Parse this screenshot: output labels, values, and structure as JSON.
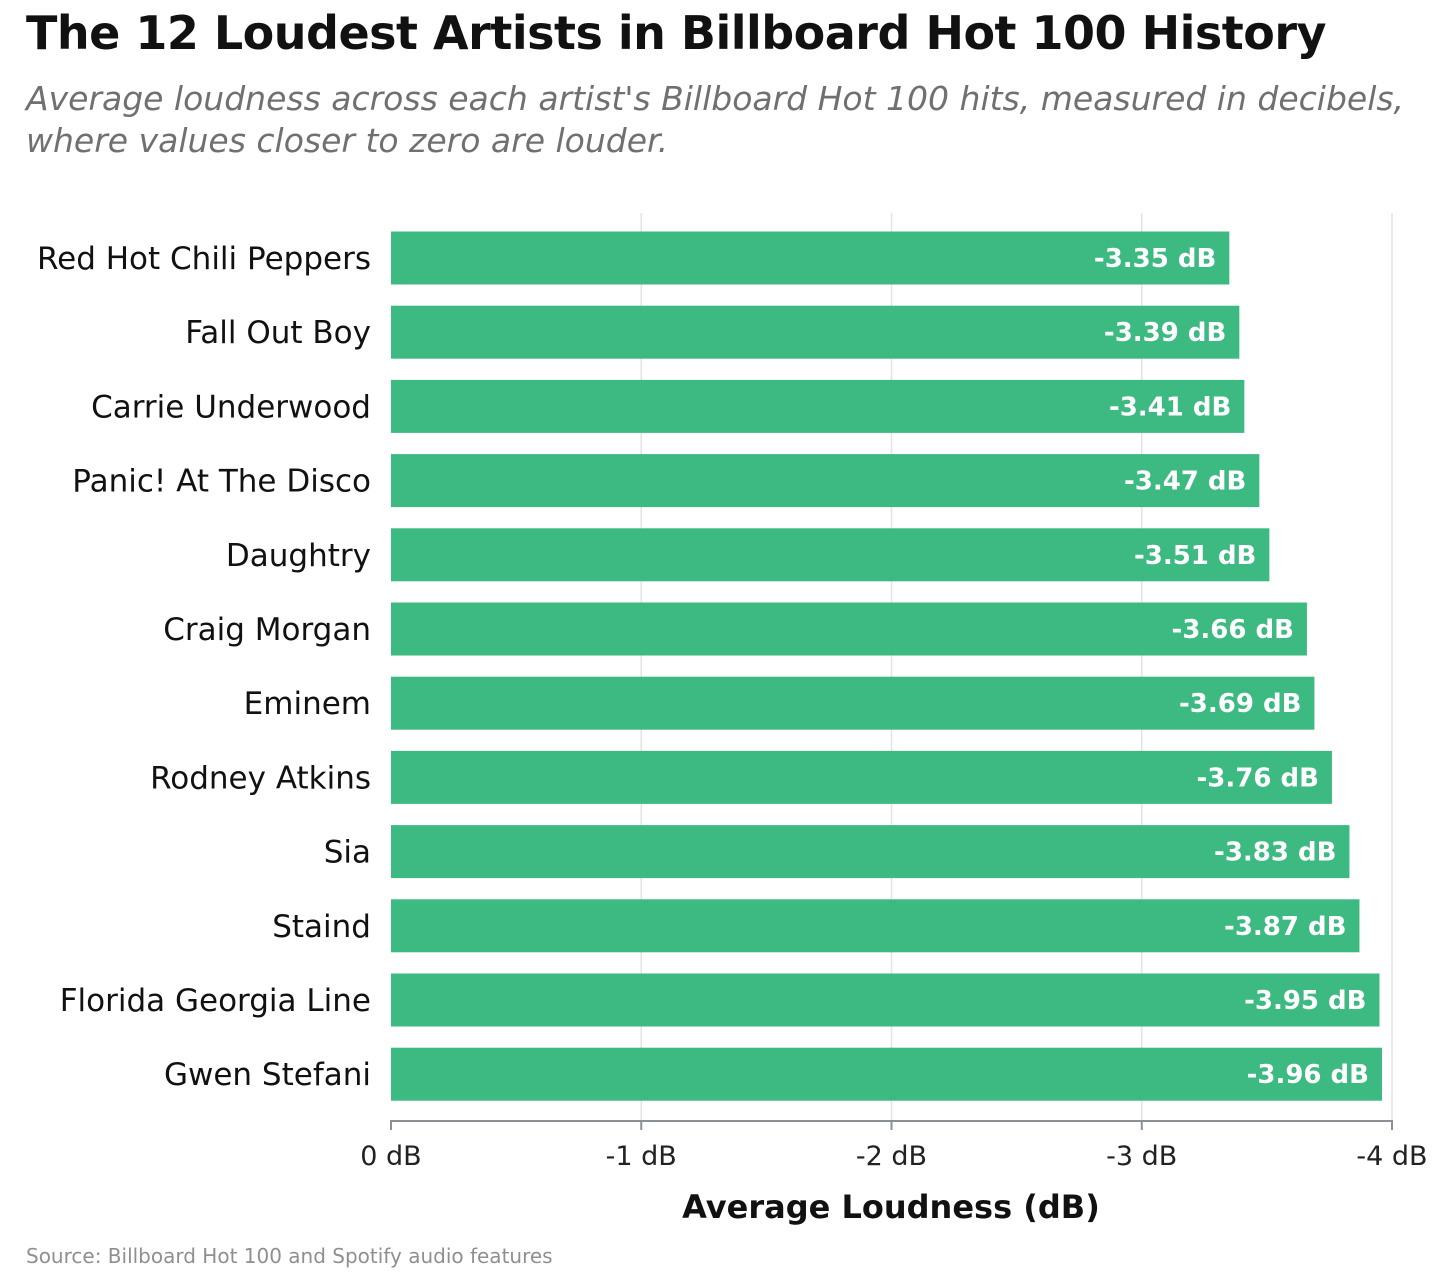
{
  "chart_data": {
    "type": "bar",
    "orientation": "horizontal",
    "title": "The 12 Loudest Artists in Billboard Hot 100 History",
    "subtitle": "Average loudness across each artist's Billboard Hot 100 hits, measured in decibels, where values closer to zero are louder.",
    "xlabel": "Average Loudness (dB)",
    "ylabel": "",
    "xlim": [
      0,
      -4
    ],
    "x_ticks": [
      0,
      -1,
      -2,
      -3,
      -4
    ],
    "x_tick_labels": [
      "0 dB",
      "-1 dB",
      "-2 dB",
      "-3 dB",
      "-4 dB"
    ],
    "grid": "vertical",
    "legend": "none",
    "bar_color": "#3dba82",
    "categories": [
      "Red Hot Chili Peppers",
      "Fall Out Boy",
      "Carrie Underwood",
      "Panic! At The Disco",
      "Daughtry",
      "Craig Morgan",
      "Eminem",
      "Rodney Atkins",
      "Sia",
      "Staind",
      "Florida Georgia Line",
      "Gwen Stefani"
    ],
    "values": [
      -3.35,
      -3.39,
      -3.41,
      -3.47,
      -3.51,
      -3.66,
      -3.69,
      -3.76,
      -3.83,
      -3.87,
      -3.95,
      -3.96
    ],
    "data_labels": [
      "-3.35 dB",
      "-3.39 dB",
      "-3.41 dB",
      "-3.47 dB",
      "-3.51 dB",
      "-3.66 dB",
      "-3.69 dB",
      "-3.76 dB",
      "-3.83 dB",
      "-3.87 dB",
      "-3.95 dB",
      "-3.96 dB"
    ],
    "source": "Source: Billboard Hot 100 and Spotify audio features"
  }
}
